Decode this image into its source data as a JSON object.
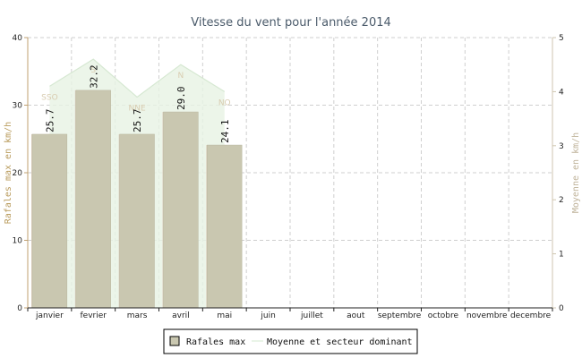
{
  "chart_data": {
    "type": "bar",
    "title": "Vitesse du vent pour l'année 2014",
    "categories": [
      "janvier",
      "fevrier",
      "mars",
      "avril",
      "mai",
      "juin",
      "juillet",
      "aout",
      "septembre",
      "octobre",
      "novembre",
      "decembre"
    ],
    "ylabel": "Rafales max en km/h",
    "ylabel_right": "Moyenne en km/h",
    "ylim": [
      0,
      40
    ],
    "yticks": [
      "0",
      "10",
      "20",
      "30",
      "40"
    ],
    "ylim_right": [
      0,
      5
    ],
    "yticks_right": [
      "0",
      "1",
      "2",
      "3",
      "4",
      "5"
    ],
    "grid": true,
    "legend_position": "bottom",
    "series": [
      {
        "name": "Rafales max",
        "axis": "left",
        "values": [
          25.7,
          32.2,
          25.7,
          29.0,
          24.1,
          null,
          null,
          null,
          null,
          null,
          null,
          null
        ],
        "labels": [
          "25.7",
          "32.2",
          "25.7",
          "29.0",
          "24.1"
        ],
        "color": "#c9c7b0"
      },
      {
        "name": "Moyenne et secteur dominant",
        "axis": "right",
        "values": [
          4.1,
          4.6,
          3.9,
          4.5,
          4.0,
          null,
          null,
          null,
          null,
          null,
          null,
          null
        ],
        "sectors": [
          "SSO",
          "S",
          "NNE",
          "N",
          "NO"
        ],
        "color": "#e3f0e0"
      }
    ]
  }
}
